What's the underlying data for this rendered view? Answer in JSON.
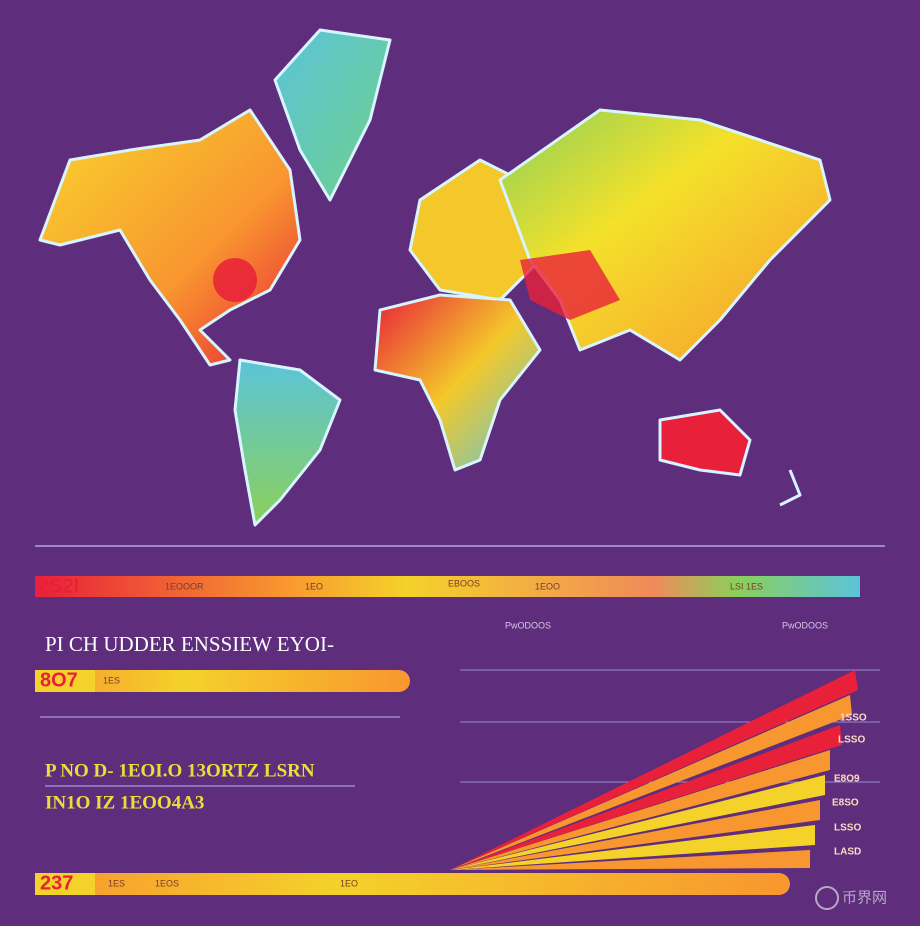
{
  "top_bar": {
    "label": "2S2I",
    "tags": [
      "1EOOOR",
      "1EO",
      "EBOOS",
      "1EOO",
      "LSI 1ES"
    ]
  },
  "column_labels": [
    "PwODOOS",
    "PwODOOS"
  ],
  "heading": "PI CH UDDER ENSSIEW EYOI-",
  "mid_bar": {
    "label": "8O7",
    "tags": [
      "1ES"
    ]
  },
  "subtitle_lines": [
    "P NO D- 1EOI.O 13ORTZ LSRN",
    "IN1O IZ 1EOO4A3"
  ],
  "bottom_bar": {
    "label": "237",
    "tags": [
      "1ES",
      "1EOS",
      "1EO"
    ]
  },
  "fan_labels": [
    "1SSO",
    "LSSO",
    "E8O9",
    "E8SO",
    "LSSO",
    "LASD"
  ],
  "watermark": "币界网"
}
